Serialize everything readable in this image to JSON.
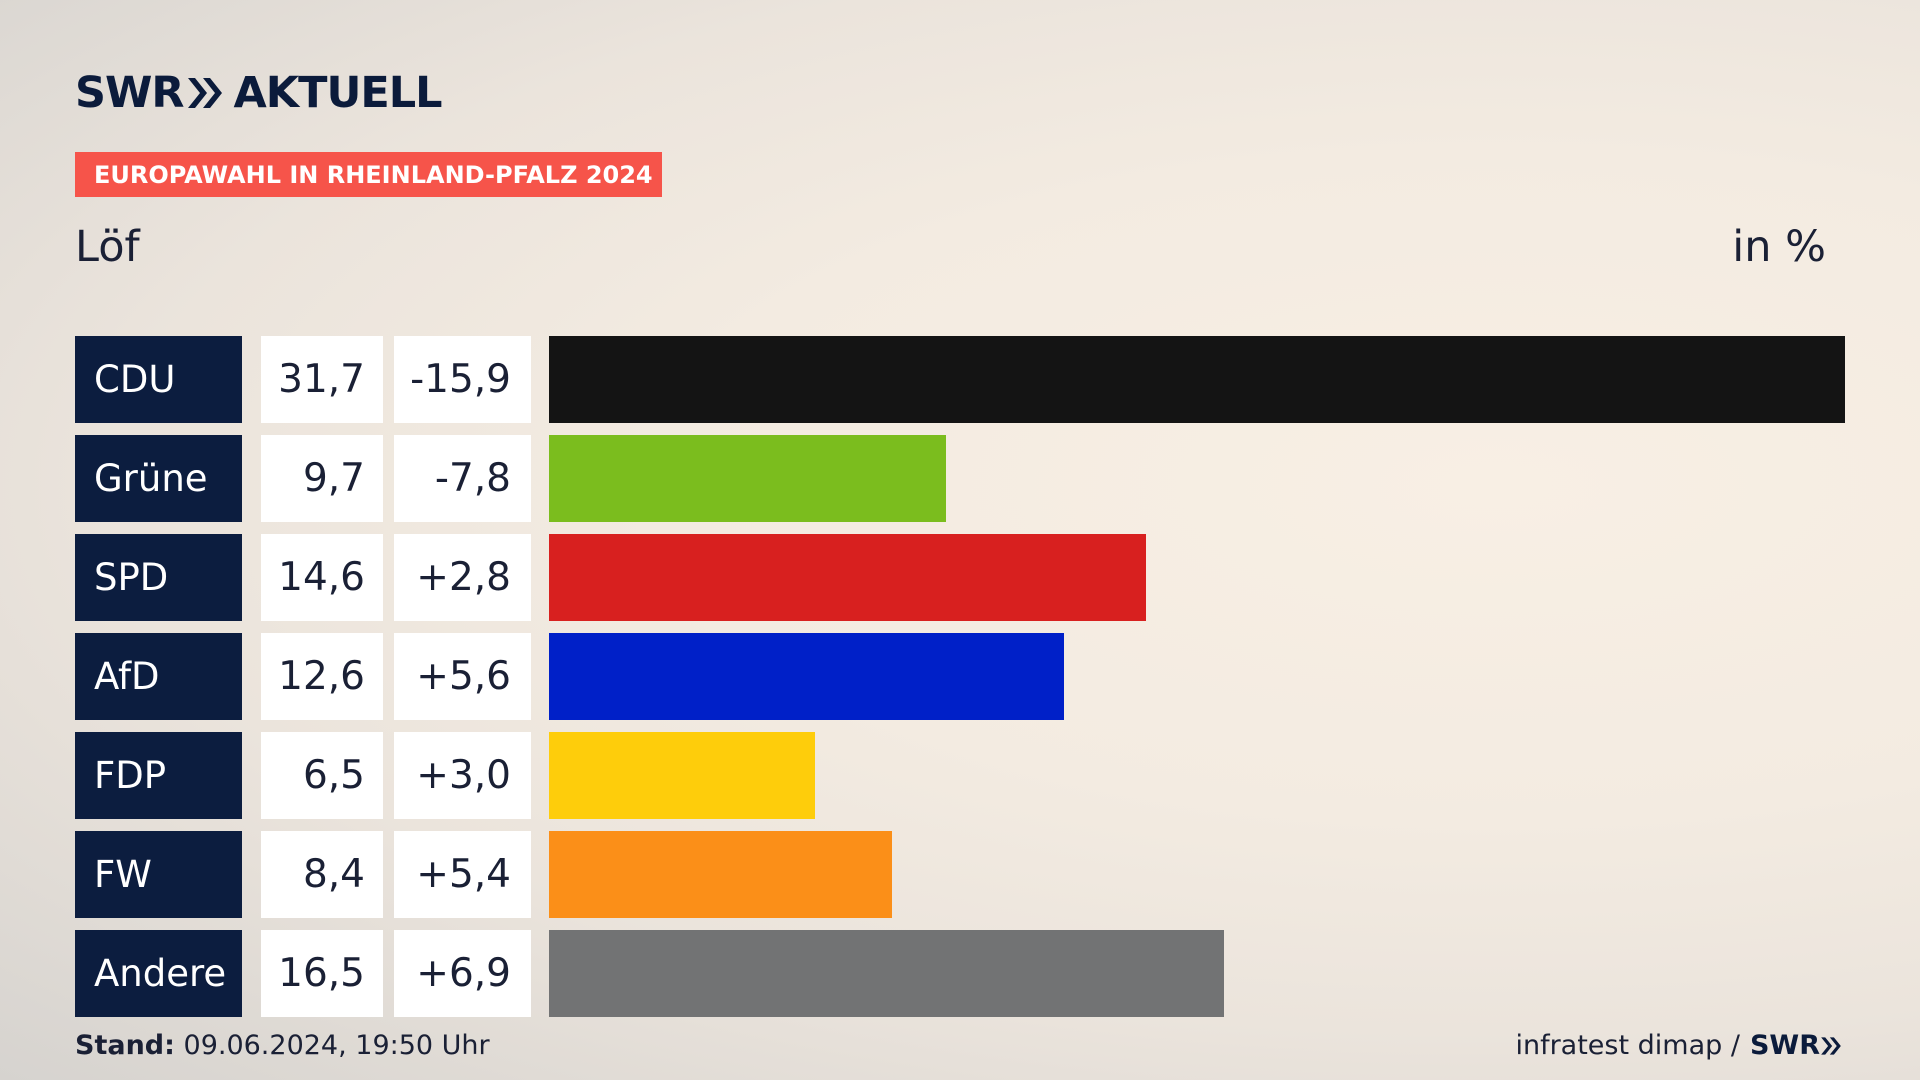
{
  "header": {
    "brand_swr": "SWR",
    "brand_aktuell": "AKTUELL",
    "subtitle": "EUROPAWAHL IN RHEINLAND-PFALZ 2024",
    "region": "Löf",
    "unit": "in %"
  },
  "footer": {
    "stand_label": "Stand:",
    "stand_value": "09.06.2024, 19:50 Uhr",
    "source": "infratest dimap /",
    "source_brand": "SWR"
  },
  "chart_data": {
    "type": "bar",
    "categories": [
      "CDU",
      "Grüne",
      "SPD",
      "AfD",
      "FDP",
      "FW",
      "Andere"
    ],
    "values": [
      31.7,
      9.7,
      14.6,
      12.6,
      6.5,
      8.4,
      16.5
    ],
    "value_labels": [
      "31,7",
      "9,7",
      "14,6",
      "12,6",
      "6,5",
      "8,4",
      "16,5"
    ],
    "diffs": [
      -15.9,
      -7.8,
      2.8,
      5.6,
      3.0,
      5.4,
      6.9
    ],
    "diff_labels": [
      "-15,9",
      "-7,8",
      "+2,8",
      "+5,6",
      "+3,0",
      "+5,4",
      "+6,9"
    ],
    "colors": [
      "#141414",
      "#7bbd1e",
      "#d8201f",
      "#0020c8",
      "#fecd0b",
      "#fb8f18",
      "#727374"
    ],
    "ylabel": "in %"
  }
}
